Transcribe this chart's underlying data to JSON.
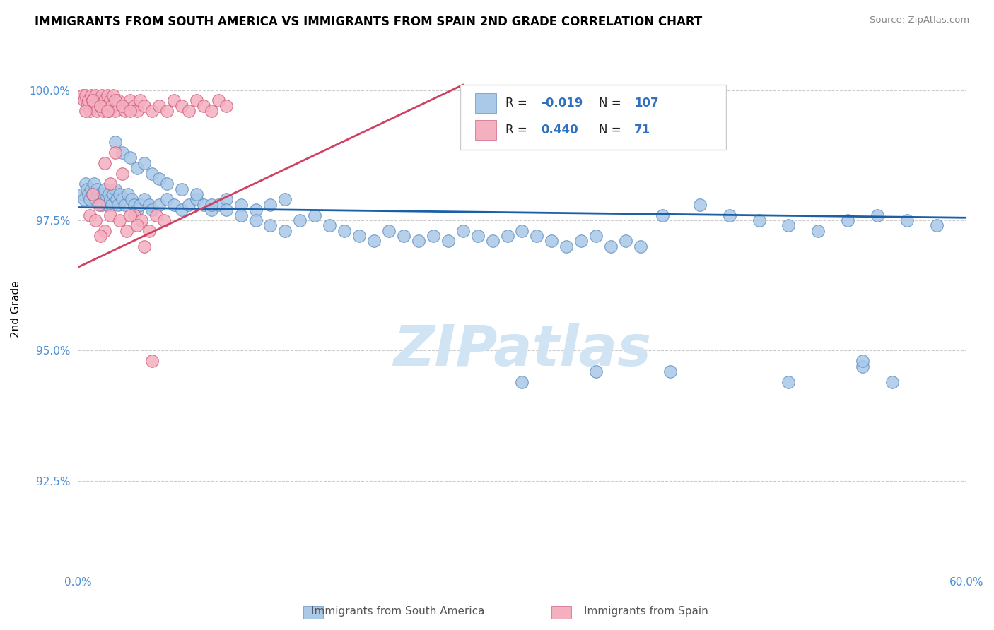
{
  "title": "IMMIGRANTS FROM SOUTH AMERICA VS IMMIGRANTS FROM SPAIN 2ND GRADE CORRELATION CHART",
  "source": "Source: ZipAtlas.com",
  "ylabel": "2nd Grade",
  "xlim": [
    0.0,
    0.6
  ],
  "ylim": [
    0.908,
    1.008
  ],
  "yticks": [
    0.925,
    0.95,
    0.975,
    1.0
  ],
  "ytick_labels": [
    "92.5%",
    "95.0%",
    "97.5%",
    "100.0%"
  ],
  "xtick_labels": [
    "0.0%",
    "60.0%"
  ],
  "R_blue": -0.019,
  "N_blue": 107,
  "R_pink": 0.44,
  "N_pink": 71,
  "blue_color": "#aac8e8",
  "pink_color": "#f5b0c0",
  "blue_edge_color": "#6090c0",
  "pink_edge_color": "#d06080",
  "blue_line_color": "#1a5fa8",
  "pink_line_color": "#d04060",
  "watermark_color": "#d0e4f4",
  "label_blue": "Immigrants from South America",
  "label_pink": "Immigrants from Spain",
  "blue_scatter_x": [
    0.003,
    0.004,
    0.005,
    0.006,
    0.007,
    0.008,
    0.009,
    0.01,
    0.011,
    0.012,
    0.013,
    0.014,
    0.015,
    0.016,
    0.017,
    0.018,
    0.019,
    0.02,
    0.021,
    0.022,
    0.023,
    0.024,
    0.025,
    0.026,
    0.027,
    0.028,
    0.03,
    0.032,
    0.034,
    0.036,
    0.038,
    0.04,
    0.042,
    0.045,
    0.048,
    0.05,
    0.055,
    0.06,
    0.065,
    0.07,
    0.075,
    0.08,
    0.085,
    0.09,
    0.095,
    0.1,
    0.11,
    0.12,
    0.13,
    0.14,
    0.025,
    0.03,
    0.035,
    0.04,
    0.045,
    0.05,
    0.055,
    0.06,
    0.07,
    0.08,
    0.09,
    0.1,
    0.11,
    0.12,
    0.13,
    0.14,
    0.15,
    0.16,
    0.17,
    0.18,
    0.19,
    0.2,
    0.21,
    0.22,
    0.23,
    0.24,
    0.25,
    0.26,
    0.27,
    0.28,
    0.29,
    0.3,
    0.31,
    0.32,
    0.33,
    0.34,
    0.35,
    0.36,
    0.37,
    0.38,
    0.395,
    0.42,
    0.44,
    0.46,
    0.48,
    0.5,
    0.52,
    0.54,
    0.56,
    0.58,
    0.53,
    0.53,
    0.48,
    0.3,
    0.4,
    0.35,
    0.55
  ],
  "blue_scatter_y": [
    0.98,
    0.979,
    0.982,
    0.981,
    0.98,
    0.979,
    0.981,
    0.98,
    0.982,
    0.979,
    0.981,
    0.98,
    0.979,
    0.978,
    0.98,
    0.981,
    0.979,
    0.978,
    0.98,
    0.979,
    0.978,
    0.98,
    0.981,
    0.979,
    0.978,
    0.98,
    0.979,
    0.978,
    0.98,
    0.979,
    0.978,
    0.977,
    0.978,
    0.979,
    0.978,
    0.977,
    0.978,
    0.979,
    0.978,
    0.977,
    0.978,
    0.979,
    0.978,
    0.977,
    0.978,
    0.979,
    0.978,
    0.977,
    0.978,
    0.979,
    0.99,
    0.988,
    0.987,
    0.985,
    0.986,
    0.984,
    0.983,
    0.982,
    0.981,
    0.98,
    0.978,
    0.977,
    0.976,
    0.975,
    0.974,
    0.973,
    0.975,
    0.976,
    0.974,
    0.973,
    0.972,
    0.971,
    0.973,
    0.972,
    0.971,
    0.972,
    0.971,
    0.973,
    0.972,
    0.971,
    0.972,
    0.973,
    0.972,
    0.971,
    0.97,
    0.971,
    0.972,
    0.97,
    0.971,
    0.97,
    0.976,
    0.978,
    0.976,
    0.975,
    0.974,
    0.973,
    0.975,
    0.976,
    0.975,
    0.974,
    0.947,
    0.948,
    0.944,
    0.944,
    0.946,
    0.946,
    0.944
  ],
  "pink_scatter_x": [
    0.003,
    0.004,
    0.005,
    0.006,
    0.007,
    0.008,
    0.009,
    0.01,
    0.011,
    0.012,
    0.013,
    0.014,
    0.015,
    0.016,
    0.017,
    0.018,
    0.019,
    0.02,
    0.021,
    0.022,
    0.023,
    0.024,
    0.025,
    0.027,
    0.03,
    0.032,
    0.035,
    0.038,
    0.04,
    0.042,
    0.045,
    0.05,
    0.055,
    0.06,
    0.065,
    0.07,
    0.075,
    0.08,
    0.085,
    0.09,
    0.095,
    0.1,
    0.005,
    0.01,
    0.015,
    0.02,
    0.025,
    0.03,
    0.035,
    0.008,
    0.012,
    0.018,
    0.022,
    0.028,
    0.033,
    0.038,
    0.043,
    0.048,
    0.053,
    0.058,
    0.025,
    0.018,
    0.03,
    0.022,
    0.01,
    0.014,
    0.035,
    0.04,
    0.015,
    0.045,
    0.05
  ],
  "pink_scatter_y": [
    0.999,
    0.998,
    0.999,
    0.997,
    0.998,
    0.996,
    0.999,
    0.998,
    0.997,
    0.999,
    0.996,
    0.998,
    0.997,
    0.999,
    0.996,
    0.998,
    0.997,
    0.999,
    0.996,
    0.998,
    0.997,
    0.999,
    0.996,
    0.998,
    0.997,
    0.996,
    0.998,
    0.997,
    0.996,
    0.998,
    0.997,
    0.996,
    0.997,
    0.996,
    0.998,
    0.997,
    0.996,
    0.998,
    0.997,
    0.996,
    0.998,
    0.997,
    0.996,
    0.998,
    0.997,
    0.996,
    0.998,
    0.997,
    0.996,
    0.976,
    0.975,
    0.973,
    0.976,
    0.975,
    0.973,
    0.976,
    0.975,
    0.973,
    0.976,
    0.975,
    0.988,
    0.986,
    0.984,
    0.982,
    0.98,
    0.978,
    0.976,
    0.974,
    0.972,
    0.97,
    0.948
  ]
}
